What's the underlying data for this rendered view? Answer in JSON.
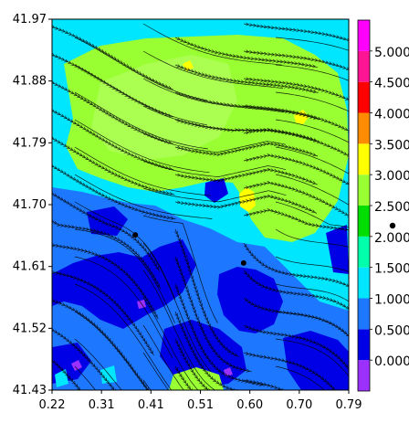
{
  "chart_data": {
    "type": "heatmap",
    "title": "",
    "xlabel": "",
    "ylabel": "",
    "xlim": [
      0.22,
      0.79
    ],
    "ylim": [
      41.43,
      41.97
    ],
    "x_ticks": [
      "0.22",
      "0.31",
      "0.41",
      "0.51",
      "0.60",
      "0.70",
      "0.79"
    ],
    "y_ticks": [
      "41.97",
      "41.88",
      "41.79",
      "41.70",
      "41.61",
      "41.52",
      "41.43"
    ],
    "grid": false,
    "legend": "right",
    "colorbar": {
      "labels": [
        "0.000",
        "0.500",
        "1.000",
        "1.500",
        "2.000",
        "2.500",
        "3.000",
        "3.500",
        "4.000",
        "4.500",
        "5.000"
      ],
      "colors": [
        "#9b30ff",
        "#0000e6",
        "#1e78ff",
        "#00e6ff",
        "#00ffaa",
        "#00dd00",
        "#99ff33",
        "#ffff00",
        "#ff8c00",
        "#ff0000",
        "#ff1493",
        "#ff00ff"
      ]
    },
    "markers": [
      {
        "x": 0.38,
        "y": 41.656
      },
      {
        "x": 0.588,
        "y": 41.615
      }
    ],
    "legend_marker": {
      "label": "2.000",
      "symbol": "filled-circle"
    }
  }
}
